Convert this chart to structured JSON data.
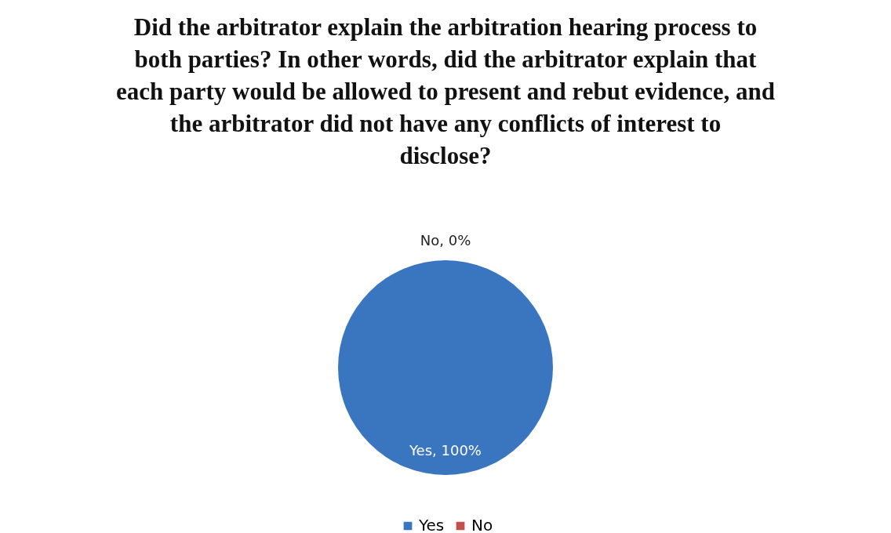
{
  "chart_data": {
    "type": "pie",
    "title": "Did the arbitrator explain the arbitration hearing process to both parties? In other words, did the arbitrator explain that each party would be allowed to present and rebut evidence, and the arbitrator did not have any conflicts of interest to disclose?",
    "categories": [
      "Yes",
      "No"
    ],
    "values": [
      100,
      0
    ],
    "colors": [
      "#3a76c0",
      "#c0504d"
    ],
    "value_labels": [
      "Yes, 100%",
      "No, 0%"
    ],
    "legend": "bottom"
  }
}
